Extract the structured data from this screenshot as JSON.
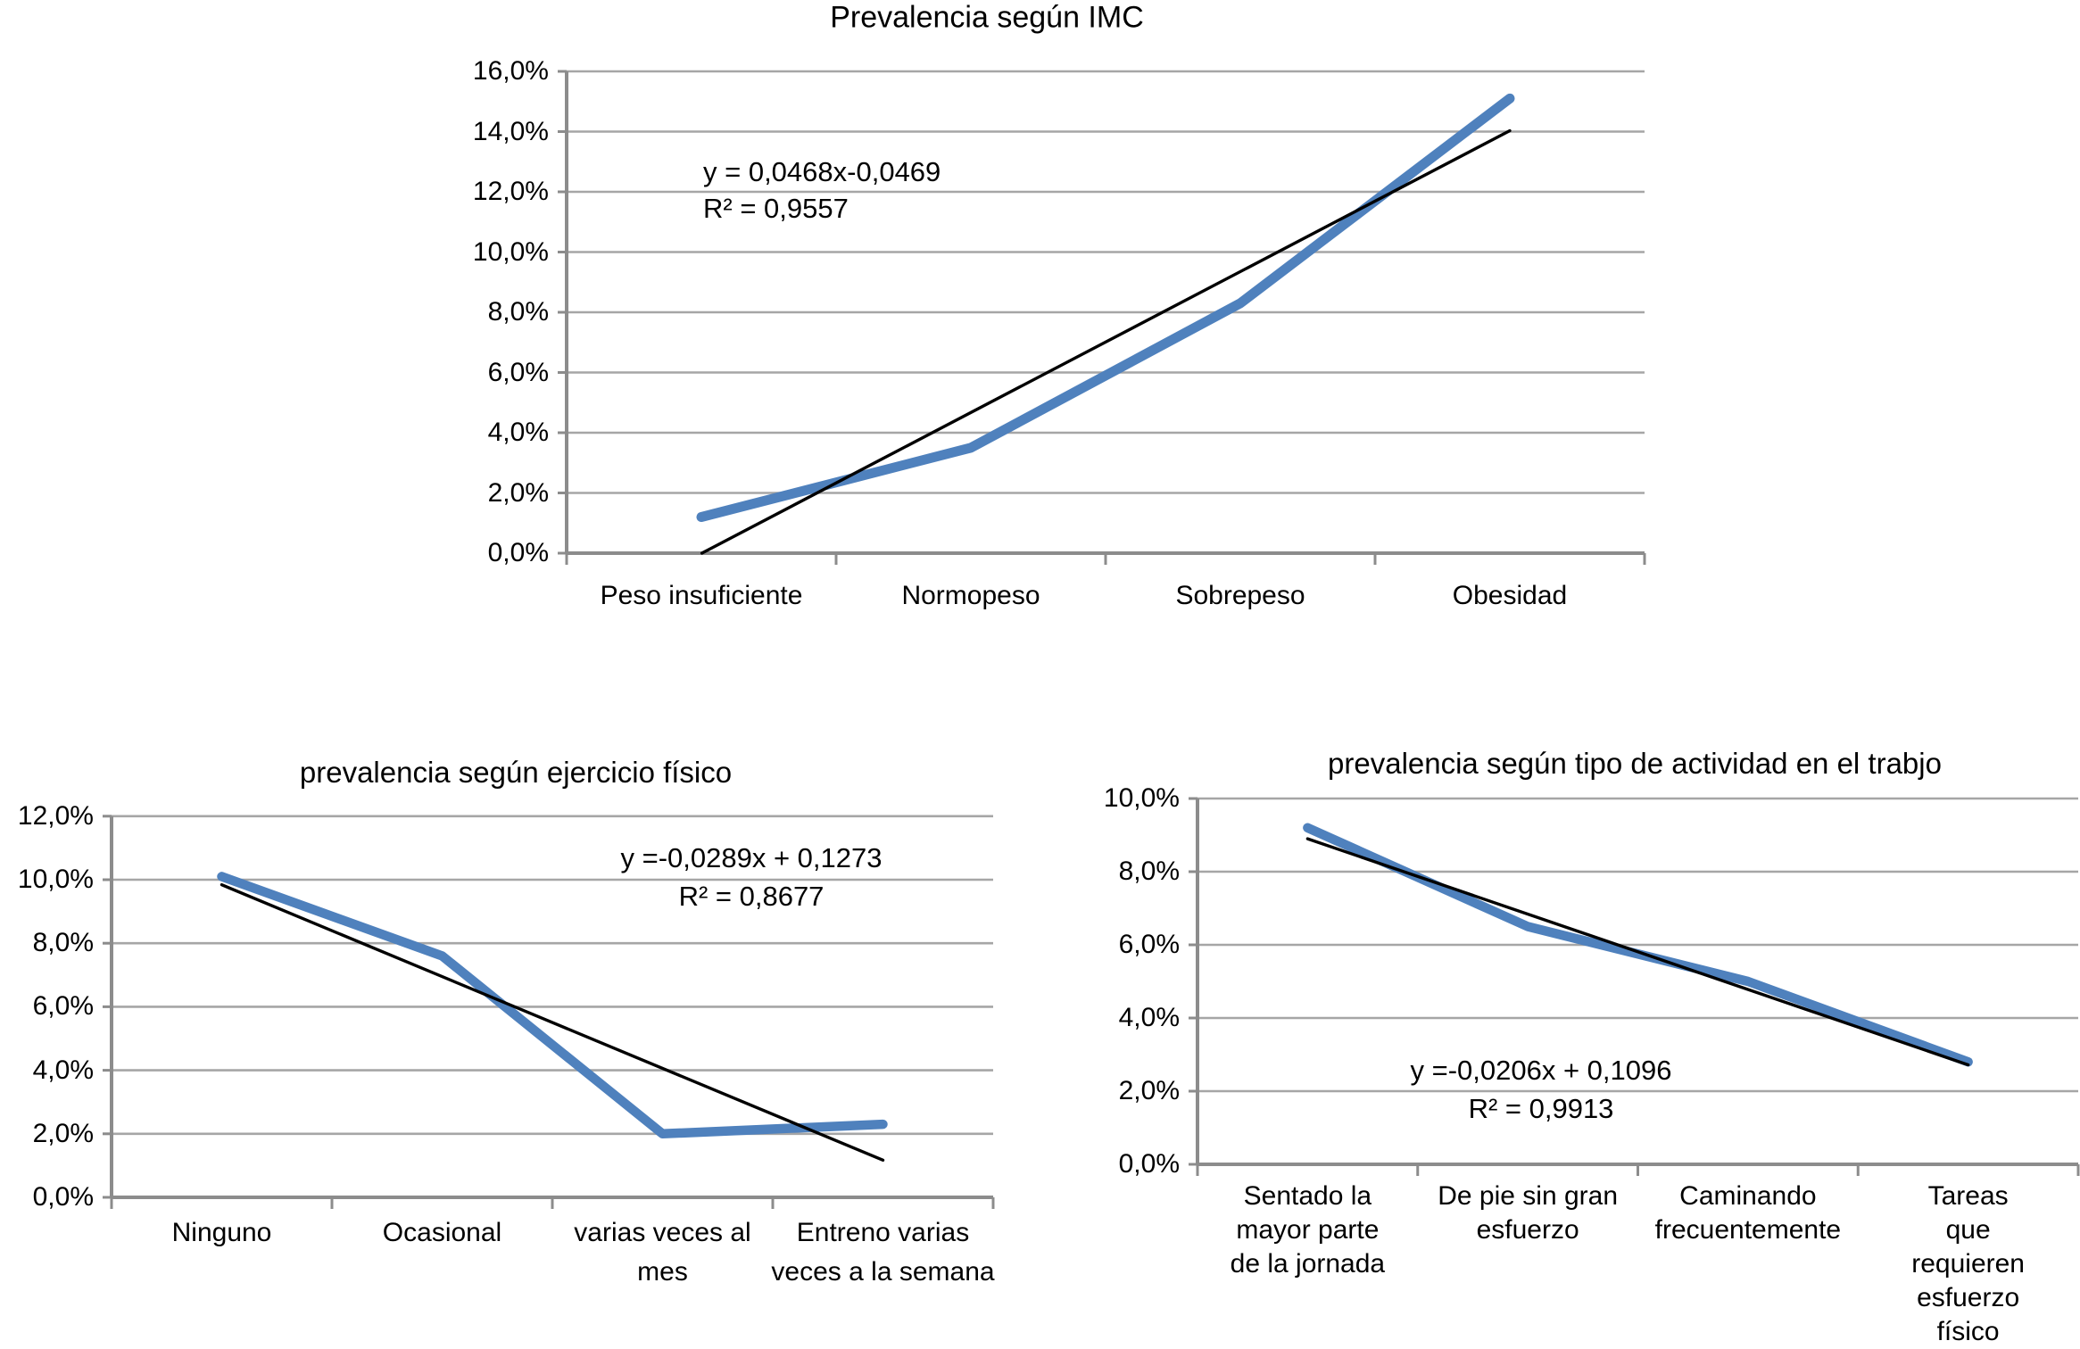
{
  "figure": {
    "background": "#FFFFFF"
  },
  "chart_data": [
    {
      "type": "line",
      "title": "Prevalencia según IMC",
      "categories": [
        "Peso insuficiente",
        "Normopeso",
        "Sobrepeso",
        "Obesidad"
      ],
      "label_lines": [
        [
          "Peso insuficiente"
        ],
        [
          "Normopeso"
        ],
        [
          "Sobrepeso"
        ],
        [
          "Obesidad"
        ]
      ],
      "values_pct": [
        1.2,
        3.5,
        8.3,
        15.1
      ],
      "y_axis": {
        "min_pct": 0,
        "max_pct": 16,
        "step_pct": 2,
        "tick_labels": [
          "0,0%",
          "2,0%",
          "4,0%",
          "6,0%",
          "8,0%",
          "10,0%",
          "12,0%",
          "14,0%",
          "16,0%"
        ]
      },
      "grid": true,
      "legend": false,
      "trendline": {
        "equation": "y = 0,0468x-0,0469",
        "r2": "R² = 0,9557",
        "slope_per_category": 0.0468,
        "intercept": -0.0469
      },
      "colors": {
        "series": "#4F81BD",
        "trendline": "#000000",
        "gridline": "#A6A6A6",
        "axis": "#8C8C8C"
      }
    },
    {
      "type": "line",
      "title": "prevalencia según ejercicio físico",
      "categories": [
        "Ninguno",
        "Ocasional",
        "varias veces al mes",
        "Entreno varias veces a la semana"
      ],
      "label_lines": [
        [
          "Ninguno"
        ],
        [
          "Ocasional"
        ],
        [
          "varias veces al",
          "mes"
        ],
        [
          "Entreno varias",
          "veces a la semana"
        ]
      ],
      "values_pct": [
        10.1,
        7.6,
        2.0,
        2.3
      ],
      "y_axis": {
        "min_pct": 0,
        "max_pct": 12,
        "step_pct": 2,
        "tick_labels": [
          "0,0%",
          "2,0%",
          "4,0%",
          "6,0%",
          "8,0%",
          "10,0%",
          "12,0%"
        ]
      },
      "grid": true,
      "legend": false,
      "trendline": {
        "equation": "y =-0,0289x + 0,1273",
        "r2": "R² = 0,8677",
        "slope_per_category": -0.0289,
        "intercept": 0.1273
      },
      "colors": {
        "series": "#4F81BD",
        "trendline": "#000000",
        "gridline": "#A6A6A6",
        "axis": "#8C8C8C"
      }
    },
    {
      "type": "line",
      "title": "prevalencia según tipo de actividad en el trabjo",
      "categories": [
        "Sentado la mayor parte de la jornada",
        "De pie sin gran esfuerzo",
        "Caminando frecuentemente",
        "Tareas que requieren esfuerzo físico"
      ],
      "label_lines": [
        [
          "Sentado la",
          "mayor parte",
          "de la jornada"
        ],
        [
          "De pie sin gran",
          "esfuerzo"
        ],
        [
          "Caminando",
          "frecuentemente"
        ],
        [
          "Tareas que",
          "requieren",
          "esfuerzo físico"
        ]
      ],
      "values_pct": [
        9.2,
        6.5,
        5.0,
        2.8
      ],
      "y_axis": {
        "min_pct": 0,
        "max_pct": 10,
        "step_pct": 2,
        "tick_labels": [
          "0,0%",
          "2,0%",
          "4,0%",
          "6,0%",
          "8,0%",
          "10,0%"
        ]
      },
      "grid": true,
      "legend": false,
      "trendline": {
        "equation": "y =-0,0206x + 0,1096",
        "r2": "R² = 0,9913",
        "slope_per_category": -0.0206,
        "intercept": 0.1096
      },
      "colors": {
        "series": "#4F81BD",
        "trendline": "#000000",
        "gridline": "#A6A6A6",
        "axis": "#8C8C8C"
      }
    }
  ]
}
